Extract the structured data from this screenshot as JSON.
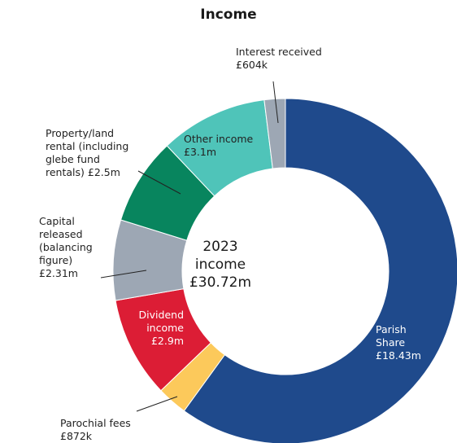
{
  "chart_data": {
    "type": "pie",
    "title": "Income",
    "center_label": [
      "2023",
      "income",
      "£30.72m"
    ],
    "total": 30.72,
    "unit": "£m",
    "slices": [
      {
        "label": "Parish Share",
        "value": 18.43,
        "value_label": "£18.43m",
        "color": "#1f4a8c"
      },
      {
        "label": "Parochial fees",
        "value": 0.872,
        "value_label": "£872k",
        "color": "#fcc95b"
      },
      {
        "label": "Dividend income",
        "value": 2.9,
        "value_label": "£2.9m",
        "color": "#dc1d35"
      },
      {
        "label": "Capital released (balancing figure)",
        "value": 2.31,
        "value_label": "£2.31m",
        "color": "#9da7b4"
      },
      {
        "label": "Property/land rental (including glebe fund rentals)",
        "value": 2.5,
        "value_label": "£2.5m",
        "color": "#08855e"
      },
      {
        "label": "Other income",
        "value": 3.1,
        "value_label": "£3.1m",
        "color": "#4fc4b9"
      },
      {
        "label": "Interest received",
        "value": 0.604,
        "value_label": "£604k",
        "color": "#9da7b4"
      }
    ]
  },
  "labels": {
    "parish": [
      "Parish",
      "Share",
      "£18.43m"
    ],
    "parochial": [
      "Parochial fees",
      "£872k"
    ],
    "dividend": [
      "Dividend",
      "income",
      "£2.9m"
    ],
    "capital": [
      "Capital",
      "released",
      "(balancing",
      "figure)",
      "£2.31m"
    ],
    "property": [
      "Property/land",
      "rental (including",
      "glebe fund",
      "rentals) £2.5m"
    ],
    "other": [
      "Other income",
      "£3.1m"
    ],
    "interest": [
      "Interest received",
      "£604k"
    ]
  }
}
